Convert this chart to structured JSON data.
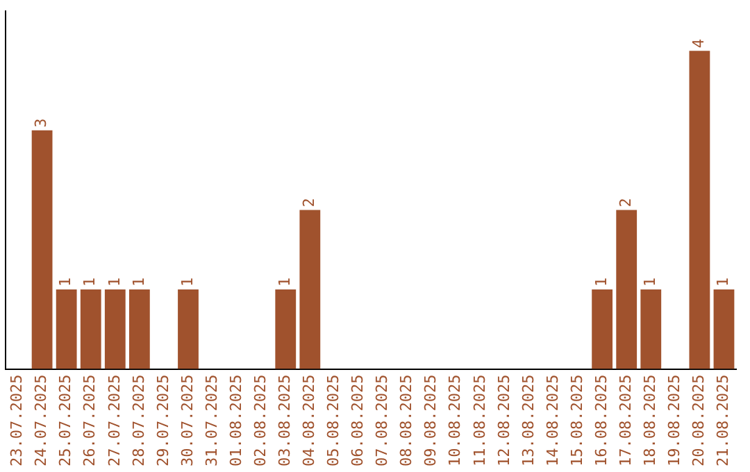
{
  "chart_data": {
    "type": "bar",
    "categories": [
      "23.07.2025",
      "24.07.2025",
      "25.07.2025",
      "26.07.2025",
      "27.07.2025",
      "28.07.2025",
      "29.07.2025",
      "30.07.2025",
      "31.07.2025",
      "01.08.2025",
      "02.08.2025",
      "03.08.2025",
      "04.08.2025",
      "05.08.2025",
      "06.08.2025",
      "07.08.2025",
      "08.08.2025",
      "09.08.2025",
      "10.08.2025",
      "11.08.2025",
      "12.08.2025",
      "13.08.2025",
      "14.08.2025",
      "15.08.2025",
      "16.08.2025",
      "17.08.2025",
      "18.08.2025",
      "19.08.2025",
      "20.08.2025",
      "21.08.2025"
    ],
    "values": [
      0,
      3,
      1,
      1,
      1,
      1,
      0,
      1,
      0,
      0,
      0,
      1,
      2,
      0,
      0,
      0,
      0,
      0,
      0,
      0,
      0,
      0,
      0,
      0,
      1,
      2,
      1,
      0,
      4,
      1
    ],
    "value_labels": [
      null,
      "3",
      "1",
      "1",
      "1",
      "1",
      null,
      "1",
      null,
      null,
      null,
      "1",
      "2",
      null,
      null,
      null,
      null,
      null,
      null,
      null,
      null,
      null,
      null,
      null,
      "1",
      "2",
      "1",
      null,
      "4",
      "1"
    ],
    "color": "#a0522d",
    "grid": false,
    "legend": false
  }
}
